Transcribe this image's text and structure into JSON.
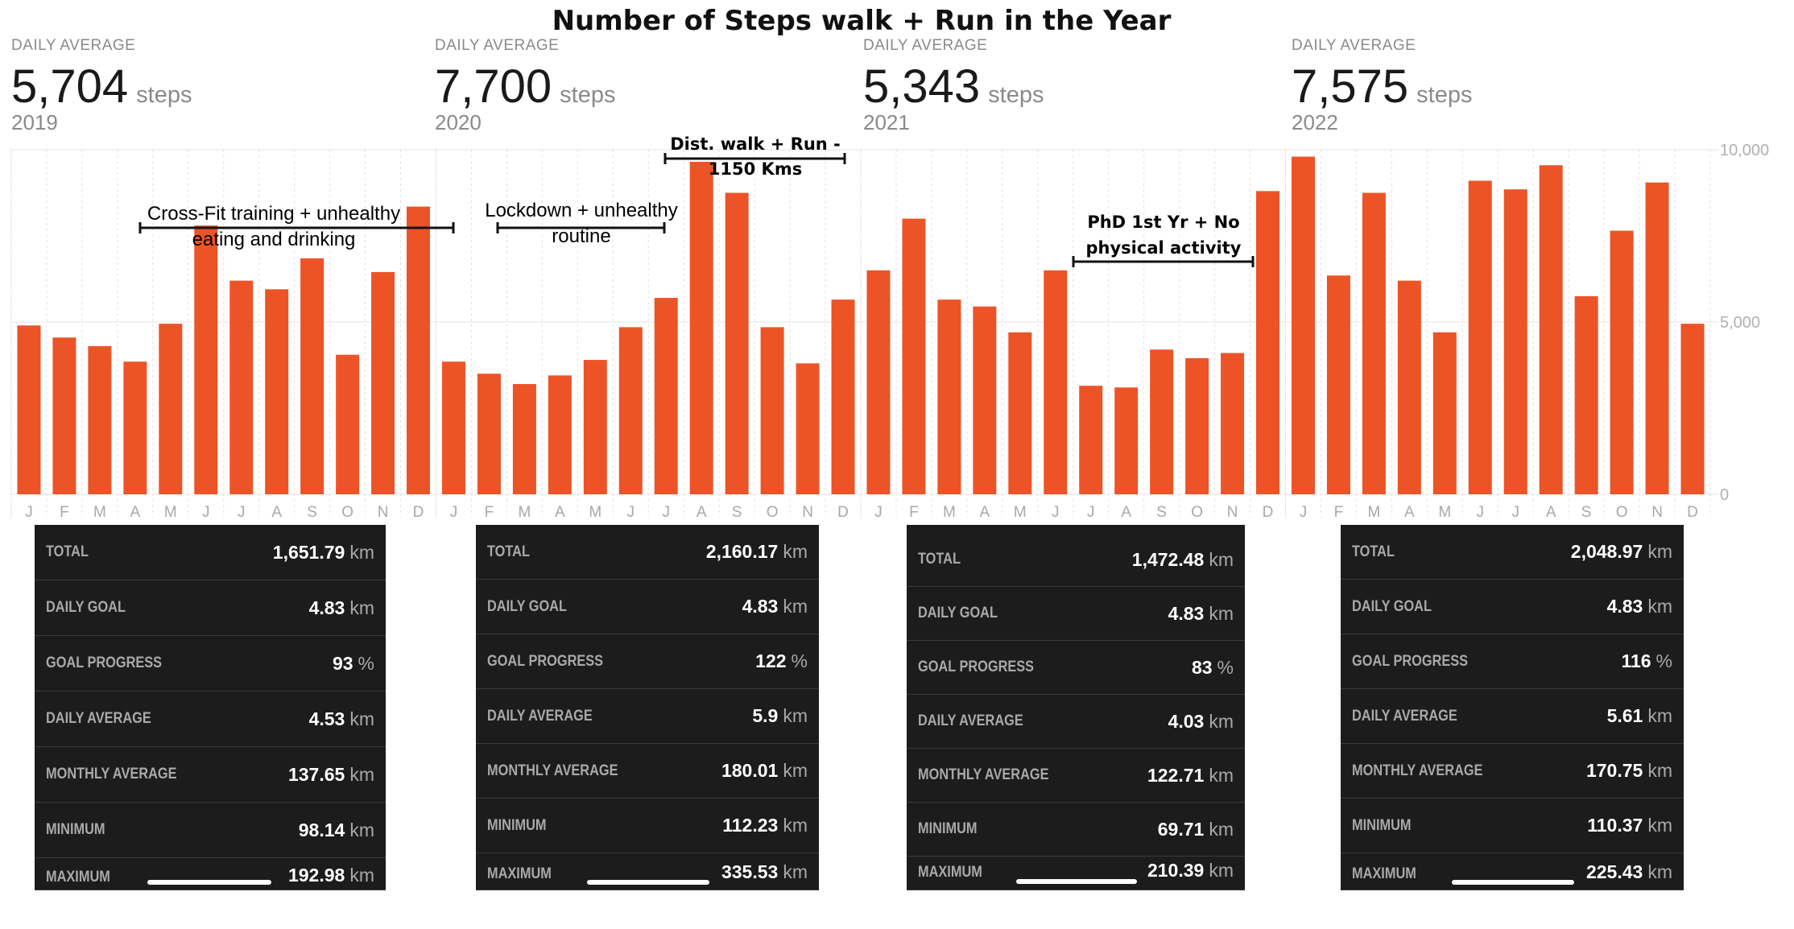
{
  "title": "Number of Steps walk + Run in the Year",
  "years": [
    {
      "label": "DAILY AVERAGE",
      "value": "5,704",
      "unit": "steps",
      "year": "2019"
    },
    {
      "label": "DAILY AVERAGE",
      "value": "7,700",
      "unit": "steps",
      "year": "2020"
    },
    {
      "label": "DAILY AVERAGE",
      "value": "5,343",
      "unit": "steps",
      "year": "2021"
    },
    {
      "label": "DAILY AVERAGE",
      "value": "7,575",
      "unit": "steps",
      "year": "2022"
    }
  ],
  "chart_data": {
    "type": "bar",
    "categories": [
      "J",
      "F",
      "M",
      "A",
      "M",
      "J",
      "J",
      "A",
      "S",
      "O",
      "N",
      "D",
      "J",
      "F",
      "M",
      "A",
      "M",
      "J",
      "J",
      "A",
      "S",
      "O",
      "N",
      "D",
      "J",
      "F",
      "M",
      "A",
      "M",
      "J",
      "J",
      "A",
      "S",
      "O",
      "N",
      "D",
      "J",
      "F",
      "M",
      "A",
      "M",
      "J",
      "J",
      "A",
      "S",
      "O",
      "N",
      "D"
    ],
    "values": [
      4900,
      4550,
      4300,
      3850,
      4950,
      7800,
      6200,
      5950,
      6850,
      4050,
      6450,
      8350,
      3850,
      3500,
      3200,
      3450,
      3900,
      4850,
      5700,
      9650,
      8750,
      4850,
      3800,
      5650,
      6500,
      8000,
      5650,
      5450,
      4700,
      6500,
      3150,
      3100,
      4200,
      3950,
      4100,
      8800,
      9800,
      6350,
      8750,
      6200,
      4700,
      9100,
      8850,
      9550,
      5750,
      7650,
      9050,
      4950
    ],
    "ylim": [
      0,
      10000
    ],
    "yticks": [
      "0",
      "5,000",
      "10,000"
    ],
    "bar_color": "#ec5427",
    "grid": true,
    "annotations": [
      {
        "text": "Cross-Fit training + unhealthy eating and drinking",
        "color": "#111111"
      },
      {
        "text": "Lockdown + unhealthy routine",
        "color": "#111111"
      },
      {
        "text": "Dist. walk + Run - 1150 Kms",
        "color": "#2e7d32"
      },
      {
        "text": "PhD 1st Yr + No physical activity",
        "color": "#e53935"
      }
    ]
  },
  "tables": [
    {
      "rows": [
        {
          "key": "TOTAL",
          "value": "1,651.79",
          "unit": "km"
        },
        {
          "key": "DAILY GOAL",
          "value": "4.83",
          "unit": "km"
        },
        {
          "key": "GOAL PROGRESS",
          "value": "93",
          "unit": "%"
        },
        {
          "key": "DAILY AVERAGE",
          "value": "4.53",
          "unit": "km"
        },
        {
          "key": "MONTHLY AVERAGE",
          "value": "137.65",
          "unit": "km"
        },
        {
          "key": "MINIMUM",
          "value": "98.14",
          "unit": "km"
        },
        {
          "key": "MAXIMUM",
          "value": "192.98",
          "unit": "km"
        }
      ]
    },
    {
      "rows": [
        {
          "key": "TOTAL",
          "value": "2,160.17",
          "unit": "km"
        },
        {
          "key": "DAILY GOAL",
          "value": "4.83",
          "unit": "km"
        },
        {
          "key": "GOAL PROGRESS",
          "value": "122",
          "unit": "%"
        },
        {
          "key": "DAILY AVERAGE",
          "value": "5.9",
          "unit": "km"
        },
        {
          "key": "MONTHLY AVERAGE",
          "value": "180.01",
          "unit": "km"
        },
        {
          "key": "MINIMUM",
          "value": "112.23",
          "unit": "km"
        },
        {
          "key": "MAXIMUM",
          "value": "335.53",
          "unit": "km"
        }
      ]
    },
    {
      "rows": [
        {
          "key": "TOTAL",
          "value": "1,472.48",
          "unit": "km"
        },
        {
          "key": "DAILY GOAL",
          "value": "4.83",
          "unit": "km"
        },
        {
          "key": "GOAL PROGRESS",
          "value": "83",
          "unit": "%"
        },
        {
          "key": "DAILY AVERAGE",
          "value": "4.03",
          "unit": "km"
        },
        {
          "key": "MONTHLY AVERAGE",
          "value": "122.71",
          "unit": "km"
        },
        {
          "key": "MINIMUM",
          "value": "69.71",
          "unit": "km"
        },
        {
          "key": "MAXIMUM",
          "value": "210.39",
          "unit": "km"
        }
      ]
    },
    {
      "rows": [
        {
          "key": "TOTAL",
          "value": "2,048.97",
          "unit": "km"
        },
        {
          "key": "DAILY GOAL",
          "value": "4.83",
          "unit": "km"
        },
        {
          "key": "GOAL PROGRESS",
          "value": "116",
          "unit": "%"
        },
        {
          "key": "DAILY AVERAGE",
          "value": "5.61",
          "unit": "km"
        },
        {
          "key": "MONTHLY AVERAGE",
          "value": "170.75",
          "unit": "km"
        },
        {
          "key": "MINIMUM",
          "value": "110.37",
          "unit": "km"
        },
        {
          "key": "MAXIMUM",
          "value": "225.43",
          "unit": "km"
        }
      ]
    }
  ]
}
